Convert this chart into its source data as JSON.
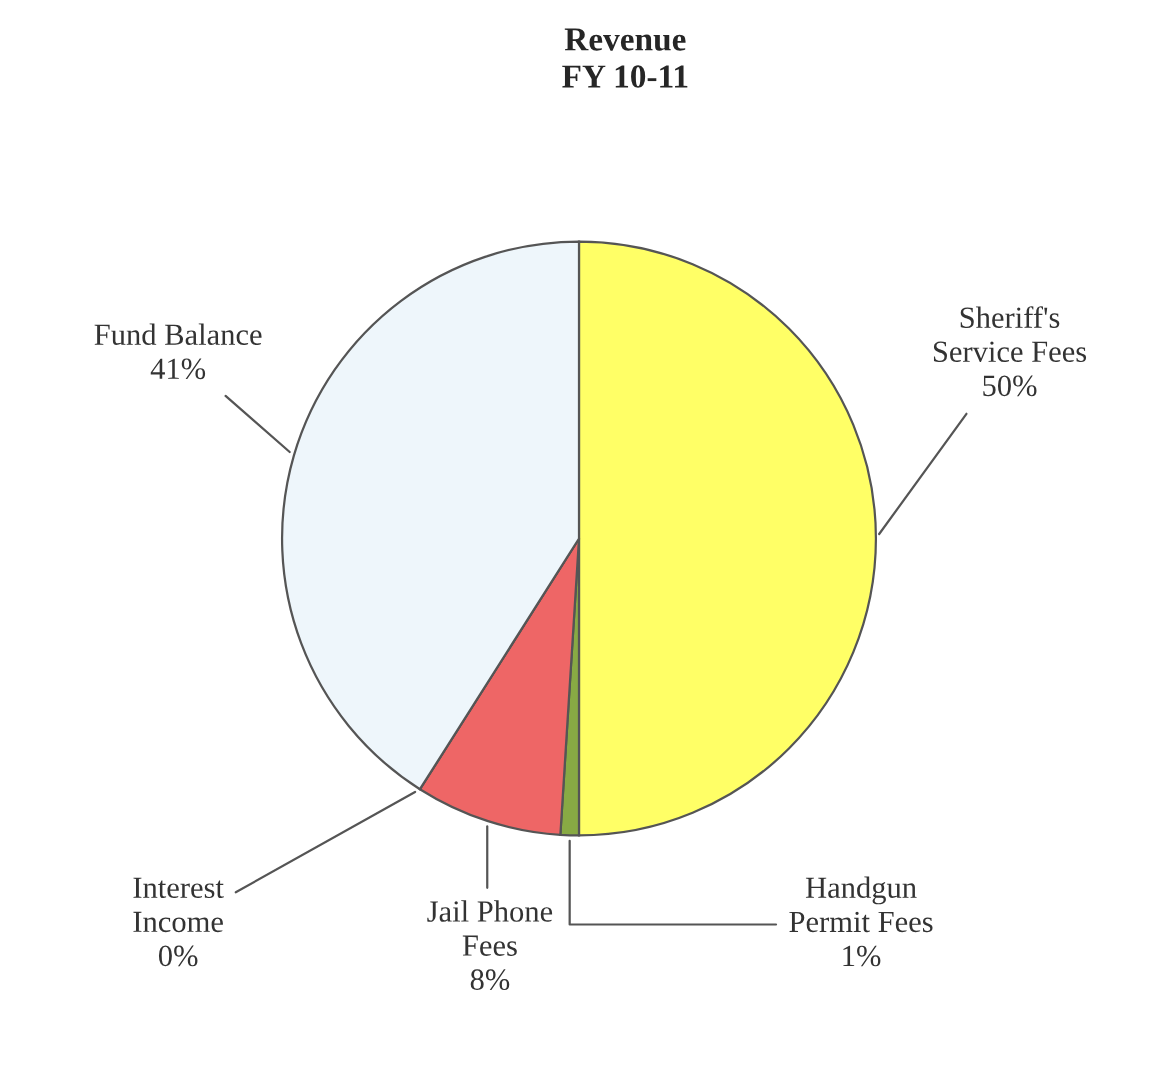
{
  "chart_data": {
    "type": "pie",
    "title": "Revenue\nFY 10-11",
    "categories": [
      "Sheriff's\nService Fees",
      "Handgun\nPermit Fees",
      "Jail Phone\nFees",
      "Interest\nIncome",
      "Fund Balance"
    ],
    "values": [
      50,
      1,
      8,
      0,
      41
    ],
    "value_labels": [
      "50%",
      "1%",
      "8%",
      "0%",
      "41%"
    ],
    "colors": [
      "#ffff66",
      "#88aa44",
      "#ee6666",
      "#334466",
      "#eef6fb"
    ],
    "legend": false
  }
}
